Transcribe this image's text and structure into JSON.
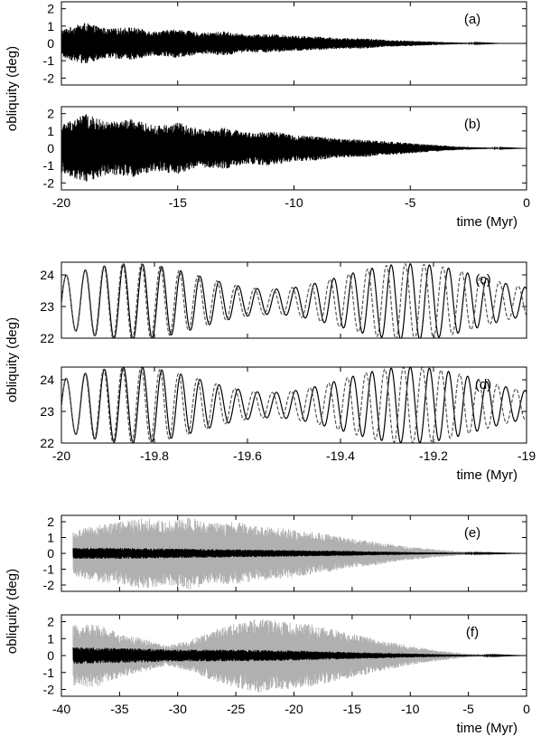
{
  "figure": {
    "ylabel": "obliquity (deg)",
    "xlabel": "time (Myr)"
  },
  "chart_data": [
    {
      "type": "line",
      "panel": "(a)",
      "xlim": [
        -20,
        0
      ],
      "ylim": [
        -2.4,
        2.4
      ],
      "xticks": [],
      "yticks": [
        2,
        1,
        0,
        -1,
        -2
      ],
      "xlabel": "",
      "ylabel": "obliquity (deg)",
      "series": [
        {
          "color": "#000000",
          "style": "solid",
          "envelope": {
            "t": [
              -20,
              -19,
              -18,
              -17,
              -16,
              -15,
              -14,
              -13,
              -12,
              -11,
              -10,
              -9,
              -8,
              -7,
              -6,
              -5,
              -4,
              -3,
              -2,
              -1,
              0
            ],
            "amp": [
              0.8,
              1.2,
              0.85,
              0.95,
              0.7,
              0.85,
              0.6,
              0.7,
              0.5,
              0.55,
              0.45,
              0.4,
              0.3,
              0.3,
              0.2,
              0.15,
              0.1,
              0.05,
              0.02,
              0.0,
              0.0
            ]
          }
        }
      ]
    },
    {
      "type": "line",
      "panel": "(b)",
      "xlim": [
        -20,
        0
      ],
      "ylim": [
        -2.4,
        2.4
      ],
      "xticks": [
        -20,
        -15,
        -10,
        -5,
        0
      ],
      "yticks": [
        2,
        1,
        0,
        -1,
        -2
      ],
      "xlabel": "time (Myr)",
      "ylabel": "obliquity (deg)",
      "series": [
        {
          "color": "#000000",
          "style": "solid",
          "envelope": {
            "t": [
              -20,
              -19,
              -18,
              -17,
              -16,
              -15,
              -14,
              -13,
              -12,
              -11,
              -10,
              -9,
              -8,
              -7,
              -6,
              -5,
              -4,
              -3,
              -2,
              -1,
              0
            ],
            "amp": [
              1.4,
              2.0,
              1.5,
              1.7,
              1.3,
              1.5,
              1.1,
              1.2,
              0.9,
              1.0,
              0.75,
              0.7,
              0.55,
              0.5,
              0.4,
              0.3,
              0.2,
              0.1,
              0.05,
              0.02,
              0.0
            ]
          }
        }
      ]
    },
    {
      "type": "line",
      "panel": "(c)",
      "xlim": [
        -20,
        -19
      ],
      "ylim": [
        22,
        24.4
      ],
      "xticks": [],
      "yticks": [
        24,
        23,
        22
      ],
      "xlabel": "",
      "ylabel": "obliquity (deg)",
      "series": [
        {
          "color": "#000000",
          "style": "solid",
          "mean": 23.15,
          "period_myr": 0.0411,
          "amp_base": 0.8,
          "amp_mod": 0.4
        },
        {
          "color": "#555555",
          "style": "dashed",
          "mean": 23.15,
          "period_myr": 0.0405,
          "amp_base": 0.8,
          "amp_mod": 0.4
        }
      ]
    },
    {
      "type": "line",
      "panel": "(d)",
      "xlim": [
        -20,
        -19
      ],
      "ylim": [
        22,
        24.4
      ],
      "xticks": [
        -20,
        -19.8,
        -19.6,
        -19.4,
        -19.2,
        -19
      ],
      "yticks": [
        24,
        23,
        22
      ],
      "xlabel": "time (Myr)",
      "ylabel": "obliquity (deg)",
      "series": [
        {
          "color": "#000000",
          "style": "solid",
          "mean": 23.2,
          "period_myr": 0.0411,
          "amp_base": 0.8,
          "amp_mod": 0.4
        },
        {
          "color": "#555555",
          "style": "dashed",
          "mean": 23.2,
          "period_myr": 0.0403,
          "amp_base": 0.8,
          "amp_mod": 0.4
        }
      ]
    },
    {
      "type": "line",
      "panel": "(e)",
      "xlim": [
        -40,
        0
      ],
      "ylim": [
        -2.4,
        2.4
      ],
      "xticks": [],
      "yticks": [
        2,
        1,
        0,
        -1,
        -2
      ],
      "xlabel": "",
      "ylabel": "obliquity (deg)",
      "series": [
        {
          "color": "#b0b0b0",
          "style": "solid",
          "envelope": {
            "t": [
              -39,
              -37,
              -35,
              -33,
              -31,
              -29,
              -27,
              -25,
              -23,
              -21,
              -19,
              -17,
              -15,
              -13,
              -11,
              -9,
              -7,
              -5,
              -3,
              -1,
              0
            ],
            "amp": [
              1.4,
              1.8,
              2.0,
              2.3,
              2.0,
              2.3,
              1.9,
              2.0,
              1.7,
              1.6,
              1.4,
              1.2,
              0.9,
              0.75,
              0.5,
              0.35,
              0.2,
              0.08,
              0.02,
              0.0,
              0.0
            ]
          }
        },
        {
          "color": "#000000",
          "style": "solid",
          "envelope": {
            "t": [
              -39,
              -35,
              -30,
              -25,
              -20,
              -15,
              -10,
              -5,
              0
            ],
            "amp": [
              0.35,
              0.35,
              0.3,
              0.25,
              0.2,
              0.15,
              0.08,
              0.03,
              0.0
            ]
          }
        }
      ]
    },
    {
      "type": "line",
      "panel": "(f)",
      "xlim": [
        -40,
        0
      ],
      "ylim": [
        -2.4,
        2.4
      ],
      "xticks": [
        -40,
        -35,
        -30,
        -25,
        -20,
        -15,
        -10,
        -5,
        0
      ],
      "yticks": [
        2,
        1,
        0,
        -1,
        -2
      ],
      "xlabel": "time (Myr)",
      "ylabel": "obliquity (deg)",
      "series": [
        {
          "color": "#b0b0b0",
          "style": "solid",
          "envelope": {
            "t": [
              -39,
              -37,
              -35,
              -33,
              -31,
              -29,
              -27,
              -25,
              -23,
              -21,
              -19,
              -17,
              -15,
              -13,
              -11,
              -9,
              -7,
              -5,
              -3,
              -1,
              0
            ],
            "amp": [
              1.8,
              1.9,
              1.3,
              1.0,
              0.6,
              0.9,
              1.5,
              1.9,
              2.2,
              2.0,
              1.9,
              1.6,
              1.3,
              1.0,
              0.7,
              0.45,
              0.25,
              0.1,
              0.03,
              0.0,
              0.0
            ]
          }
        },
        {
          "color": "#000000",
          "style": "solid",
          "envelope": {
            "t": [
              -39,
              -35,
              -30,
              -25,
              -20,
              -15,
              -10,
              -5,
              0
            ],
            "amp": [
              0.5,
              0.45,
              0.35,
              0.35,
              0.3,
              0.2,
              0.12,
              0.04,
              0.0
            ]
          }
        }
      ]
    }
  ]
}
